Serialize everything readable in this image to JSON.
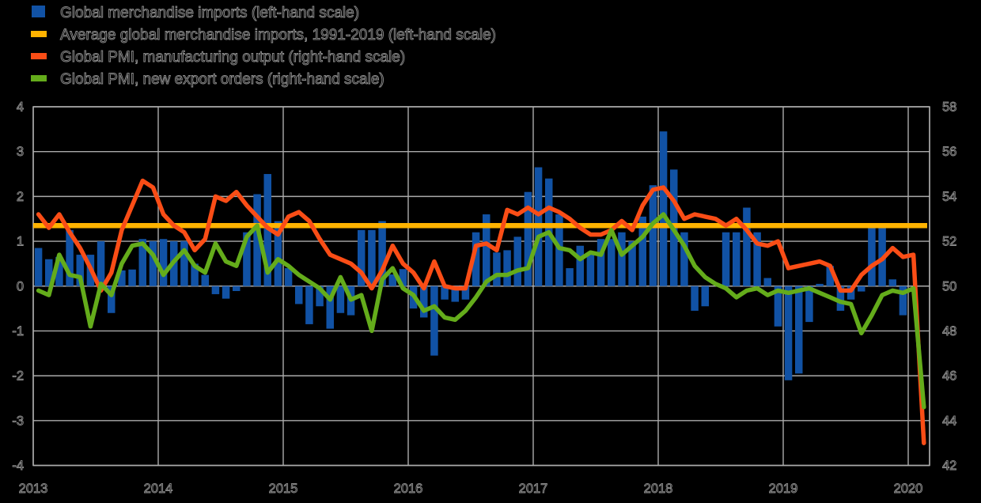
{
  "legend": {
    "items": [
      {
        "label": "Global merchandise imports (left-hand scale)",
        "color": "#1152A5",
        "marker": "bar-swatch"
      },
      {
        "label": "Average global merchandise imports, 1991-2019 (left-hand scale)",
        "color": "#FFB300",
        "marker": "line-swatch"
      },
      {
        "label": "Global PMI, manufacturing output (right-hand scale)",
        "color": "#FA4D16",
        "marker": "line-swatch"
      },
      {
        "label": "Global PMI, new export orders (right-hand scale)",
        "color": "#64AC1B",
        "marker": "line-swatch"
      }
    ]
  },
  "chart_data": {
    "type": "bar+line",
    "background": "#000000",
    "gridline_color": "#ABABAB",
    "x_start": "2013-01",
    "x_end": "2020-02",
    "year_labels": [
      "2013",
      "2014",
      "2015",
      "2016",
      "2017",
      "2018",
      "2019",
      "2020"
    ],
    "left_axis": {
      "ticks": [
        "4",
        "3",
        "2",
        "1",
        "0",
        "-1",
        "-2",
        "-3",
        "-4"
      ],
      "range": [
        -4,
        4
      ]
    },
    "right_axis": {
      "ticks": [
        "58",
        "56",
        "54",
        "52",
        "50",
        "48",
        "46",
        "44",
        "42"
      ],
      "range": [
        42,
        58
      ]
    },
    "series": [
      {
        "name": "Global merchandise imports",
        "type": "bar",
        "axis": "left",
        "color": "#1152A5",
        "values": [
          0.85,
          0.6,
          0.65,
          1.25,
          0.7,
          0.7,
          1.0,
          -0.6,
          0.35,
          0.37,
          1.05,
          1.0,
          1.05,
          1.0,
          1.0,
          0.5,
          0.25,
          -0.18,
          -0.28,
          -0.11,
          1.2,
          2.05,
          2.5,
          1.45,
          0.4,
          -0.4,
          -0.85,
          -0.45,
          -0.95,
          -0.6,
          -0.65,
          1.25,
          1.25,
          1.45,
          0.26,
          0.38,
          -0.5,
          -0.7,
          -1.55,
          -0.3,
          -0.35,
          -0.3,
          1.2,
          1.6,
          0.75,
          0.8,
          1.1,
          2.1,
          2.65,
          2.4,
          1.6,
          0.4,
          0.9,
          0.75,
          1.05,
          1.05,
          1.2,
          1.0,
          1.55,
          2.25,
          3.45,
          2.6,
          1.2,
          -0.55,
          -0.45,
          0,
          1.2,
          1.2,
          1.75,
          1.2,
          0.18,
          -0.9,
          -2.1,
          -1.95,
          -0.8,
          0.05,
          0.45,
          -0.55,
          -0.3,
          -0.12,
          1.3,
          1.3,
          0.15,
          -0.65,
          null,
          null
        ]
      },
      {
        "name": "Average global merchandise imports, 1991-2019",
        "type": "hline",
        "axis": "left",
        "color": "#FFB300",
        "value": 1.35
      },
      {
        "name": "Global PMI, manufacturing output",
        "type": "line",
        "axis": "right",
        "color": "#FA4D16",
        "values": [
          53.2,
          52.6,
          53.2,
          52.4,
          51.7,
          50.8,
          49.8,
          50.6,
          52.5,
          53.6,
          54.7,
          54.4,
          53.2,
          52.7,
          52.4,
          51.6,
          52.1,
          54.0,
          53.8,
          54.2,
          53.6,
          53.1,
          52.6,
          52.3,
          53.1,
          53.3,
          52.9,
          52.1,
          51.4,
          51.2,
          51.0,
          50.6,
          49.9,
          50.7,
          51.8,
          51.0,
          50.6,
          49.9,
          51.1,
          50.0,
          49.9,
          49.9,
          51.8,
          51.9,
          51.6,
          53.4,
          53.2,
          53.5,
          53.2,
          53.5,
          53.3,
          53.0,
          52.6,
          52.3,
          52.3,
          52.5,
          52.9,
          52.5,
          53.6,
          54.3,
          54.4,
          53.8,
          53.0,
          53.2,
          53.1,
          53.0,
          52.7,
          53.0,
          52.5,
          51.9,
          51.8,
          52.0,
          50.8,
          50.9,
          51.0,
          51.1,
          50.9,
          49.8,
          49.8,
          50.5,
          50.9,
          51.2,
          51.7,
          51.3,
          51.4,
          43.0
        ]
      },
      {
        "name": "Global PMI, new export orders",
        "type": "line",
        "axis": "right",
        "color": "#64AC1B",
        "values": [
          49.8,
          49.6,
          51.4,
          50.5,
          50.4,
          48.2,
          50.1,
          49.6,
          51.0,
          51.8,
          51.9,
          51.4,
          50.5,
          51.1,
          51.6,
          50.9,
          50.6,
          51.9,
          51.1,
          50.9,
          52.2,
          52.7,
          50.6,
          51.2,
          50.9,
          50.5,
          50.2,
          49.9,
          49.4,
          50.4,
          49.4,
          49.6,
          48.0,
          50.3,
          50.8,
          49.9,
          49.6,
          48.9,
          49.1,
          48.6,
          48.5,
          48.9,
          49.5,
          50.2,
          50.5,
          50.5,
          50.7,
          50.8,
          52.2,
          52.4,
          51.7,
          51.6,
          51.2,
          51.5,
          51.4,
          52.5,
          51.4,
          51.8,
          52.2,
          52.8,
          53.2,
          52.5,
          51.8,
          50.9,
          50.4,
          50.1,
          49.9,
          49.5,
          49.8,
          49.9,
          49.6,
          49.8,
          49.7,
          49.8,
          49.9,
          49.7,
          49.5,
          49.3,
          49.2,
          47.9,
          48.7,
          49.6,
          49.8,
          49.7,
          49.9,
          44.6
        ]
      }
    ]
  }
}
